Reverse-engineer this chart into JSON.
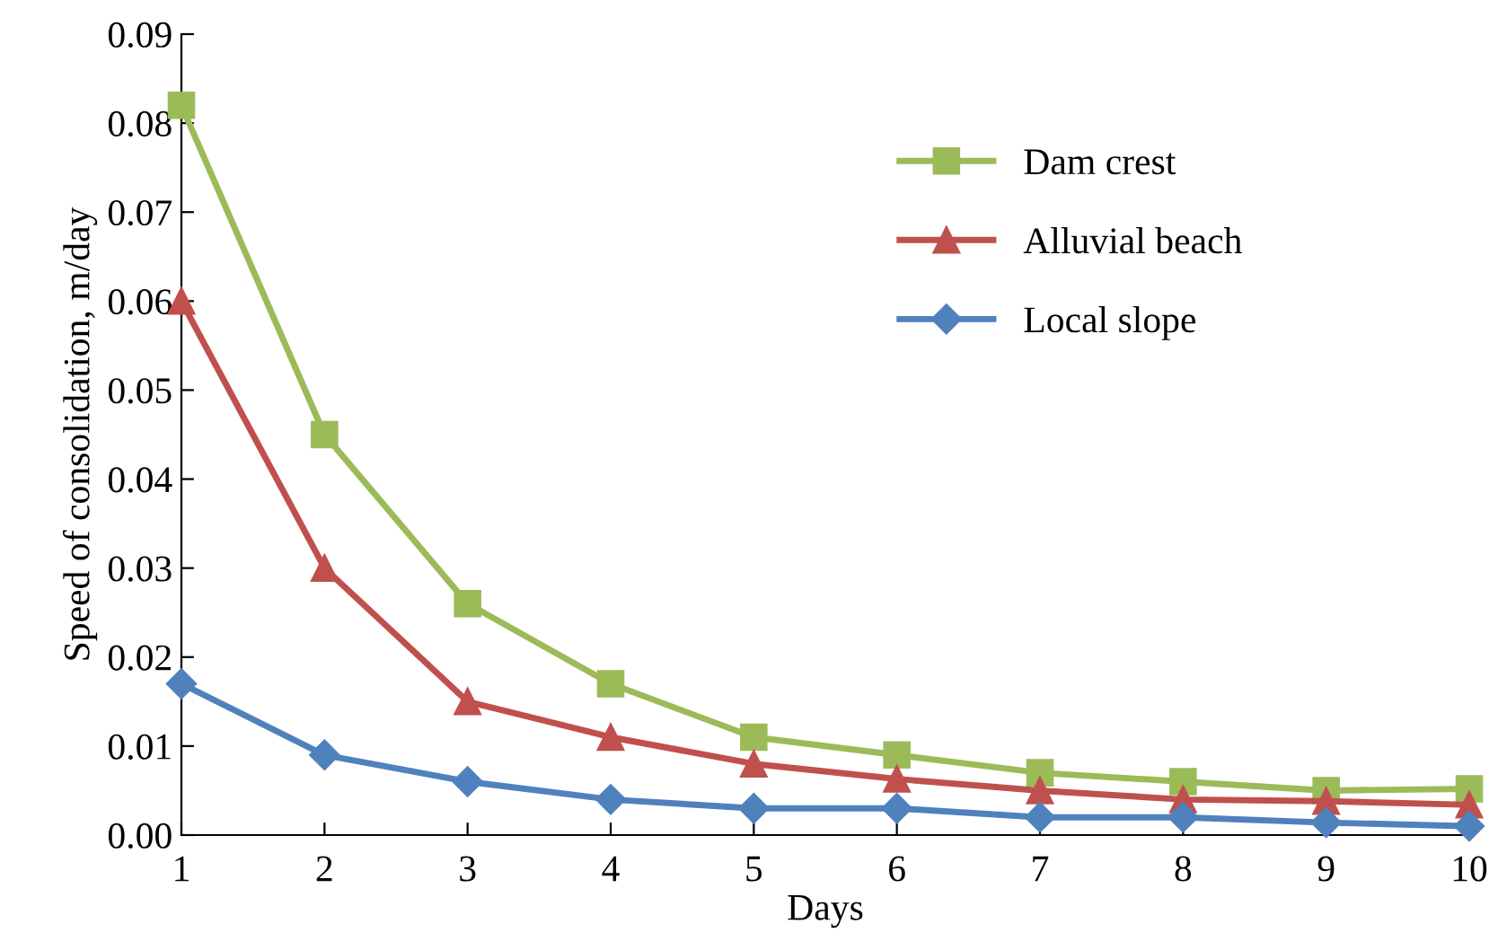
{
  "chart_data": {
    "type": "line",
    "xlabel": "Days",
    "ylabel": "Speed of consolidation, m/day",
    "x": [
      1,
      2,
      3,
      4,
      5,
      6,
      7,
      8,
      9,
      10
    ],
    "series": [
      {
        "name": "Dam crest",
        "color": "#9bbb59",
        "marker": "square",
        "values": [
          0.082,
          0.045,
          0.026,
          0.017,
          0.011,
          0.009,
          0.007,
          0.006,
          0.005,
          0.0052
        ]
      },
      {
        "name": "Alluvial beach",
        "color": "#c0504d",
        "marker": "triangle",
        "values": [
          0.06,
          0.03,
          0.015,
          0.011,
          0.008,
          0.0063,
          0.005,
          0.004,
          0.0038,
          0.0034
        ]
      },
      {
        "name": "Local slope",
        "color": "#4f81bd",
        "marker": "diamond",
        "values": [
          0.017,
          0.009,
          0.006,
          0.004,
          0.003,
          0.003,
          0.002,
          0.002,
          0.0014,
          0.001
        ]
      }
    ],
    "xlim": [
      1,
      10
    ],
    "xticks": [
      1,
      2,
      3,
      4,
      5,
      6,
      7,
      8,
      9,
      10
    ],
    "ylim": [
      0,
      0.09
    ],
    "yticks": [
      {
        "value": 0,
        "label": "0.00"
      },
      0.01,
      0.02,
      0.03,
      0.04,
      0.05,
      0.06,
      0.07,
      0.08,
      0.09
    ],
    "grid": false,
    "legend": "top right",
    "line_style": "solid"
  }
}
